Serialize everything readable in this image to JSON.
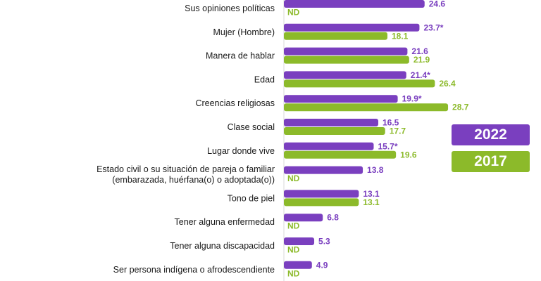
{
  "chart_data": {
    "type": "bar",
    "orientation": "horizontal",
    "categories": [
      [
        "Sus opiniones políticas"
      ],
      [
        "Mujer (Hombre)"
      ],
      [
        "Manera de hablar"
      ],
      [
        "Edad"
      ],
      [
        "Creencias religiosas"
      ],
      [
        "Clase social"
      ],
      [
        "Lugar donde vive"
      ],
      [
        "Estado civil o su situación de pareja o familiar",
        "(embarazada, huérfana(o) o adoptada(o))"
      ],
      [
        "Tono de piel"
      ],
      [
        "Tener alguna enfermedad"
      ],
      [
        "Tener alguna discapacidad"
      ],
      [
        "Ser persona indígena o afrodescendiente"
      ]
    ],
    "series": [
      {
        "name": "2022",
        "color": "#7a3fbf",
        "values": [
          24.6,
          23.7,
          21.6,
          21.4,
          19.9,
          16.5,
          15.7,
          13.8,
          13.1,
          6.8,
          5.3,
          4.9
        ],
        "labels": [
          "24.6",
          "23.7*",
          "21.6",
          "21.4*",
          "19.9*",
          "16.5",
          "15.7*",
          "13.8",
          "13.1",
          "6.8",
          "5.3",
          "4.9"
        ]
      },
      {
        "name": "2017",
        "color": "#8cba2a",
        "values": [
          null,
          18.1,
          21.9,
          26.4,
          28.7,
          17.7,
          19.6,
          null,
          13.1,
          null,
          null,
          null
        ],
        "labels": [
          "ND",
          "18.1",
          "21.9",
          "26.4",
          "28.7",
          "17.7",
          "19.6",
          "ND",
          "13.1",
          "ND",
          "ND",
          "ND"
        ]
      }
    ],
    "xlim": [
      0,
      30
    ],
    "grid": false,
    "legend_position": "right"
  }
}
